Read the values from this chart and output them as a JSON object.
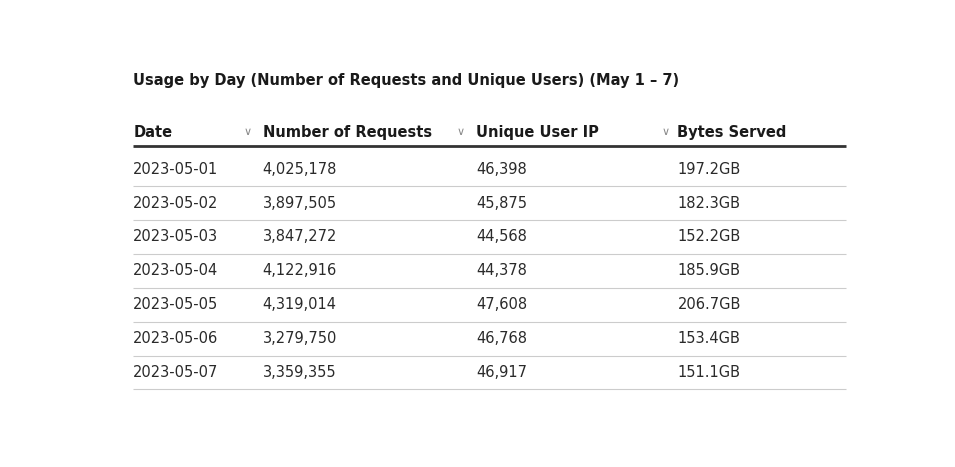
{
  "title": "Usage by Day (Number of Requests and Unique Users) (May 1 – 7)",
  "title_fontsize": 10.5,
  "title_fontweight": "bold",
  "background_color": "#ffffff",
  "columns": [
    "Date",
    "Number of Requests",
    "Unique User IP",
    "Bytes Served"
  ],
  "header_fontsize": 10.5,
  "header_fontweight": "bold",
  "header_color": "#1a1a1a",
  "data_fontsize": 10.5,
  "data_color": "#2a2a2a",
  "rows": [
    [
      "2023-05-01",
      "4,025,178",
      "46,398",
      "197.2GB"
    ],
    [
      "2023-05-02",
      "3,897,505",
      "45,875",
      "182.3GB"
    ],
    [
      "2023-05-03",
      "3,847,272",
      "44,568",
      "152.2GB"
    ],
    [
      "2023-05-04",
      "4,122,916",
      "44,378",
      "185.9GB"
    ],
    [
      "2023-05-05",
      "4,319,014",
      "47,608",
      "206.7GB"
    ],
    [
      "2023-05-06",
      "3,279,750",
      "46,768",
      "153.4GB"
    ],
    [
      "2023-05-07",
      "3,359,355",
      "46,917",
      "151.1GB"
    ]
  ],
  "line_color": "#cccccc",
  "thick_line_color": "#333333",
  "arrow_color": "#888888"
}
